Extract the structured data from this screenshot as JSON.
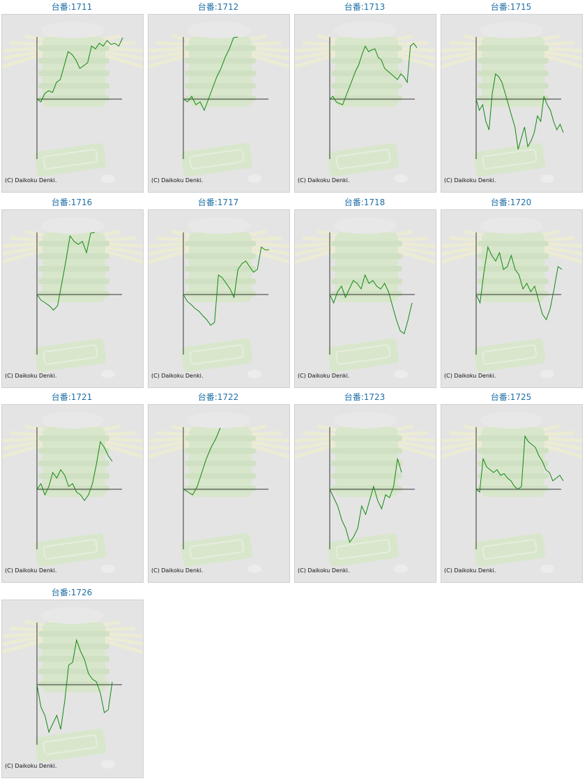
{
  "colors": {
    "title": "#1f6fa6",
    "line": "#118811",
    "axis": "#333333",
    "background": "#e4e4e4"
  },
  "copyright": "(C) Daikoku Denki.",
  "chart_data": [
    {
      "type": "line",
      "title": "台番:1711",
      "y": [
        0,
        -0.05,
        0.1,
        0.15,
        0.12,
        0.3,
        0.35,
        0.6,
        0.85,
        0.8,
        0.7,
        0.55,
        0.6,
        0.65,
        0.95,
        0.9,
        1.0,
        0.95,
        1.05,
        0.98,
        1.0,
        0.95,
        1.1
      ]
    },
    {
      "type": "line",
      "title": "台番:1712",
      "y": [
        0,
        -0.05,
        0.05,
        -0.1,
        -0.05,
        -0.2,
        0.0,
        0.2,
        0.4,
        0.55,
        0.75,
        0.9,
        1.1,
        1.12
      ]
    },
    {
      "type": "line",
      "title": "台番:1713",
      "y": [
        0,
        0.05,
        -0.05,
        -0.08,
        -0.1,
        0.05,
        0.2,
        0.35,
        0.5,
        0.62,
        0.8,
        0.95,
        0.85,
        0.88,
        0.9,
        0.75,
        0.7,
        0.55,
        0.5,
        0.45,
        0.4,
        0.35,
        0.45,
        0.4,
        0.3,
        0.95,
        1.0,
        0.92
      ]
    },
    {
      "type": "line",
      "title": "台番:1715",
      "y": [
        0,
        -0.2,
        -0.1,
        -0.4,
        -0.55,
        0.1,
        0.45,
        0.4,
        0.3,
        0.1,
        -0.1,
        -0.3,
        -0.5,
        -0.9,
        -0.7,
        -0.5,
        -0.85,
        -0.75,
        -0.6,
        -0.3,
        -0.4,
        0.05,
        -0.1,
        -0.2,
        -0.4,
        -0.55,
        -0.45,
        -0.6
      ]
    },
    {
      "type": "line",
      "title": "台番:1716",
      "y": [
        0,
        -0.1,
        -0.15,
        -0.2,
        -0.28,
        -0.2,
        0.2,
        0.6,
        1.05,
        0.95,
        0.9,
        0.95,
        0.75,
        1.1,
        1.2
      ]
    },
    {
      "type": "line",
      "title": "台番:1717",
      "y": [
        0,
        -0.12,
        -0.18,
        -0.25,
        -0.3,
        -0.38,
        -0.45,
        -0.55,
        -0.5,
        0.35,
        0.3,
        0.2,
        0.1,
        -0.05,
        0.45,
        0.55,
        0.6,
        0.5,
        0.4,
        0.45,
        0.85,
        0.8,
        0.8
      ]
    },
    {
      "type": "line",
      "title": "台番:1718",
      "y": [
        0,
        -0.15,
        0.05,
        0.15,
        -0.05,
        0.1,
        0.25,
        0.2,
        0.1,
        0.35,
        0.2,
        0.25,
        0.15,
        0.1,
        0.2,
        0.05,
        -0.2,
        -0.45,
        -0.65,
        -0.7,
        -0.45,
        -0.15
      ]
    },
    {
      "type": "line",
      "title": "台番:1720",
      "y": [
        0,
        -0.15,
        0.4,
        0.85,
        0.7,
        0.6,
        0.75,
        0.45,
        0.5,
        0.7,
        0.45,
        0.35,
        0.1,
        0.2,
        0.05,
        0.15,
        -0.1,
        -0.35,
        -0.45,
        -0.25,
        0.1,
        0.5,
        0.45
      ]
    },
    {
      "type": "line",
      "title": "台番:1721",
      "y": [
        0,
        0.1,
        -0.1,
        0.05,
        0.3,
        0.2,
        0.35,
        0.25,
        0.05,
        0.1,
        -0.05,
        -0.1,
        -0.2,
        -0.1,
        0.1,
        0.45,
        0.85,
        0.75,
        0.6,
        0.5
      ]
    },
    {
      "type": "line",
      "title": "台番:1722",
      "y": [
        0,
        -0.05,
        -0.1,
        0.05,
        0.3,
        0.55,
        0.75,
        0.9,
        1.1
      ]
    },
    {
      "type": "line",
      "title": "台番:1723",
      "y": [
        0,
        -0.15,
        -0.3,
        -0.55,
        -0.7,
        -0.95,
        -0.85,
        -0.7,
        -0.3,
        -0.45,
        -0.2,
        0.05,
        -0.2,
        -0.35,
        -0.1,
        -0.15,
        0.05,
        0.55,
        0.3
      ]
    },
    {
      "type": "line",
      "title": "台番:1725",
      "y": [
        0,
        -0.05,
        0.55,
        0.4,
        0.35,
        0.3,
        0.35,
        0.25,
        0.28,
        0.2,
        0.15,
        0.05,
        0.0,
        0.05,
        0.95,
        0.85,
        0.8,
        0.75,
        0.6,
        0.5,
        0.35,
        0.3,
        0.15,
        0.2,
        0.25,
        0.15
      ]
    },
    {
      "type": "line",
      "title": "台番:1726",
      "y": [
        0,
        -0.4,
        -0.55,
        -0.85,
        -0.7,
        -0.55,
        -0.8,
        -0.3,
        0.35,
        0.4,
        0.8,
        0.6,
        0.45,
        0.2,
        0.1,
        0.05,
        -0.15,
        -0.5,
        -0.45,
        0.05
      ]
    }
  ]
}
